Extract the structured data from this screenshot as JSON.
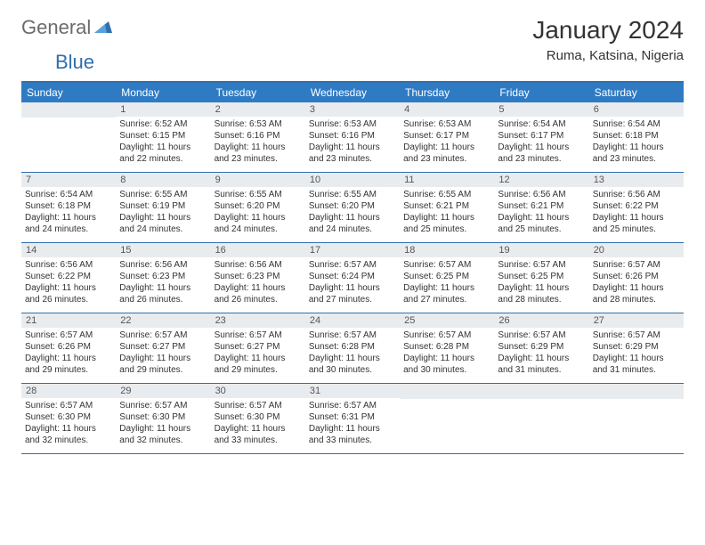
{
  "logo": {
    "part1": "General",
    "part2": "Blue"
  },
  "title": "January 2024",
  "location": "Ruma, Katsina, Nigeria",
  "colors": {
    "header_bg": "#2f7bc3",
    "border": "#2f6fae",
    "daynum_bg": "#e9ecef",
    "text": "#333333",
    "logo_gray": "#6b6b6b",
    "logo_blue": "#2f6fae"
  },
  "day_headers": [
    "Sunday",
    "Monday",
    "Tuesday",
    "Wednesday",
    "Thursday",
    "Friday",
    "Saturday"
  ],
  "weeks": [
    [
      {
        "num": "",
        "sunrise": "",
        "sunset": "",
        "daylight": ""
      },
      {
        "num": "1",
        "sunrise": "Sunrise: 6:52 AM",
        "sunset": "Sunset: 6:15 PM",
        "daylight": "Daylight: 11 hours and 22 minutes."
      },
      {
        "num": "2",
        "sunrise": "Sunrise: 6:53 AM",
        "sunset": "Sunset: 6:16 PM",
        "daylight": "Daylight: 11 hours and 23 minutes."
      },
      {
        "num": "3",
        "sunrise": "Sunrise: 6:53 AM",
        "sunset": "Sunset: 6:16 PM",
        "daylight": "Daylight: 11 hours and 23 minutes."
      },
      {
        "num": "4",
        "sunrise": "Sunrise: 6:53 AM",
        "sunset": "Sunset: 6:17 PM",
        "daylight": "Daylight: 11 hours and 23 minutes."
      },
      {
        "num": "5",
        "sunrise": "Sunrise: 6:54 AM",
        "sunset": "Sunset: 6:17 PM",
        "daylight": "Daylight: 11 hours and 23 minutes."
      },
      {
        "num": "6",
        "sunrise": "Sunrise: 6:54 AM",
        "sunset": "Sunset: 6:18 PM",
        "daylight": "Daylight: 11 hours and 23 minutes."
      }
    ],
    [
      {
        "num": "7",
        "sunrise": "Sunrise: 6:54 AM",
        "sunset": "Sunset: 6:18 PM",
        "daylight": "Daylight: 11 hours and 24 minutes."
      },
      {
        "num": "8",
        "sunrise": "Sunrise: 6:55 AM",
        "sunset": "Sunset: 6:19 PM",
        "daylight": "Daylight: 11 hours and 24 minutes."
      },
      {
        "num": "9",
        "sunrise": "Sunrise: 6:55 AM",
        "sunset": "Sunset: 6:20 PM",
        "daylight": "Daylight: 11 hours and 24 minutes."
      },
      {
        "num": "10",
        "sunrise": "Sunrise: 6:55 AM",
        "sunset": "Sunset: 6:20 PM",
        "daylight": "Daylight: 11 hours and 24 minutes."
      },
      {
        "num": "11",
        "sunrise": "Sunrise: 6:55 AM",
        "sunset": "Sunset: 6:21 PM",
        "daylight": "Daylight: 11 hours and 25 minutes."
      },
      {
        "num": "12",
        "sunrise": "Sunrise: 6:56 AM",
        "sunset": "Sunset: 6:21 PM",
        "daylight": "Daylight: 11 hours and 25 minutes."
      },
      {
        "num": "13",
        "sunrise": "Sunrise: 6:56 AM",
        "sunset": "Sunset: 6:22 PM",
        "daylight": "Daylight: 11 hours and 25 minutes."
      }
    ],
    [
      {
        "num": "14",
        "sunrise": "Sunrise: 6:56 AM",
        "sunset": "Sunset: 6:22 PM",
        "daylight": "Daylight: 11 hours and 26 minutes."
      },
      {
        "num": "15",
        "sunrise": "Sunrise: 6:56 AM",
        "sunset": "Sunset: 6:23 PM",
        "daylight": "Daylight: 11 hours and 26 minutes."
      },
      {
        "num": "16",
        "sunrise": "Sunrise: 6:56 AM",
        "sunset": "Sunset: 6:23 PM",
        "daylight": "Daylight: 11 hours and 26 minutes."
      },
      {
        "num": "17",
        "sunrise": "Sunrise: 6:57 AM",
        "sunset": "Sunset: 6:24 PM",
        "daylight": "Daylight: 11 hours and 27 minutes."
      },
      {
        "num": "18",
        "sunrise": "Sunrise: 6:57 AM",
        "sunset": "Sunset: 6:25 PM",
        "daylight": "Daylight: 11 hours and 27 minutes."
      },
      {
        "num": "19",
        "sunrise": "Sunrise: 6:57 AM",
        "sunset": "Sunset: 6:25 PM",
        "daylight": "Daylight: 11 hours and 28 minutes."
      },
      {
        "num": "20",
        "sunrise": "Sunrise: 6:57 AM",
        "sunset": "Sunset: 6:26 PM",
        "daylight": "Daylight: 11 hours and 28 minutes."
      }
    ],
    [
      {
        "num": "21",
        "sunrise": "Sunrise: 6:57 AM",
        "sunset": "Sunset: 6:26 PM",
        "daylight": "Daylight: 11 hours and 29 minutes."
      },
      {
        "num": "22",
        "sunrise": "Sunrise: 6:57 AM",
        "sunset": "Sunset: 6:27 PM",
        "daylight": "Daylight: 11 hours and 29 minutes."
      },
      {
        "num": "23",
        "sunrise": "Sunrise: 6:57 AM",
        "sunset": "Sunset: 6:27 PM",
        "daylight": "Daylight: 11 hours and 29 minutes."
      },
      {
        "num": "24",
        "sunrise": "Sunrise: 6:57 AM",
        "sunset": "Sunset: 6:28 PM",
        "daylight": "Daylight: 11 hours and 30 minutes."
      },
      {
        "num": "25",
        "sunrise": "Sunrise: 6:57 AM",
        "sunset": "Sunset: 6:28 PM",
        "daylight": "Daylight: 11 hours and 30 minutes."
      },
      {
        "num": "26",
        "sunrise": "Sunrise: 6:57 AM",
        "sunset": "Sunset: 6:29 PM",
        "daylight": "Daylight: 11 hours and 31 minutes."
      },
      {
        "num": "27",
        "sunrise": "Sunrise: 6:57 AM",
        "sunset": "Sunset: 6:29 PM",
        "daylight": "Daylight: 11 hours and 31 minutes."
      }
    ],
    [
      {
        "num": "28",
        "sunrise": "Sunrise: 6:57 AM",
        "sunset": "Sunset: 6:30 PM",
        "daylight": "Daylight: 11 hours and 32 minutes."
      },
      {
        "num": "29",
        "sunrise": "Sunrise: 6:57 AM",
        "sunset": "Sunset: 6:30 PM",
        "daylight": "Daylight: 11 hours and 32 minutes."
      },
      {
        "num": "30",
        "sunrise": "Sunrise: 6:57 AM",
        "sunset": "Sunset: 6:30 PM",
        "daylight": "Daylight: 11 hours and 33 minutes."
      },
      {
        "num": "31",
        "sunrise": "Sunrise: 6:57 AM",
        "sunset": "Sunset: 6:31 PM",
        "daylight": "Daylight: 11 hours and 33 minutes."
      },
      {
        "num": "",
        "sunrise": "",
        "sunset": "",
        "daylight": ""
      },
      {
        "num": "",
        "sunrise": "",
        "sunset": "",
        "daylight": ""
      },
      {
        "num": "",
        "sunrise": "",
        "sunset": "",
        "daylight": ""
      }
    ]
  ]
}
